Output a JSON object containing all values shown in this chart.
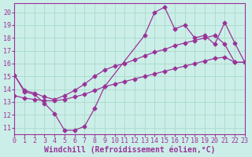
{
  "bg_color": "#cceee8",
  "grid_color": "#aaddcc",
  "line_color": "#993399",
  "xlim": [
    0,
    23
  ],
  "ylim": [
    10.5,
    20.7
  ],
  "xticks": [
    0,
    1,
    2,
    3,
    4,
    5,
    6,
    7,
    8,
    9,
    10,
    11,
    12,
    13,
    14,
    15,
    16,
    17,
    18,
    19,
    20,
    21,
    22,
    23
  ],
  "yticks": [
    11,
    12,
    13,
    14,
    15,
    16,
    17,
    18,
    19,
    20
  ],
  "xlabel": "Windchill (Refroidissement éolien,°C)",
  "line1_x": [
    0,
    1,
    2,
    3,
    4,
    5,
    6,
    7,
    8,
    9,
    13,
    14,
    15,
    16,
    17,
    18,
    19,
    20,
    21,
    22,
    23
  ],
  "line1_y": [
    15.1,
    13.8,
    13.6,
    12.9,
    12.1,
    10.8,
    10.8,
    11.1,
    12.5,
    14.2,
    18.2,
    20.0,
    20.4,
    18.7,
    19.0,
    18.0,
    18.2,
    17.5,
    19.2,
    17.6,
    16.1
  ],
  "line2_x": [
    0,
    1,
    2,
    3,
    4,
    5,
    6,
    7,
    8,
    9,
    10,
    11,
    12,
    13,
    14,
    15,
    16,
    17,
    18,
    19,
    20,
    21,
    22,
    23
  ],
  "line2_y": [
    15.1,
    13.9,
    13.7,
    13.4,
    13.2,
    13.5,
    13.9,
    14.4,
    15.0,
    15.5,
    15.8,
    16.0,
    16.3,
    16.6,
    16.9,
    17.1,
    17.4,
    17.6,
    17.8,
    18.0,
    18.2,
    17.5,
    16.1,
    16.1
  ],
  "line3_x": [
    0,
    1,
    2,
    3,
    4,
    5,
    6,
    7,
    8,
    9,
    10,
    11,
    12,
    13,
    14,
    15,
    16,
    17,
    18,
    19,
    20,
    21,
    22,
    23
  ],
  "line3_y": [
    13.5,
    13.3,
    13.2,
    13.1,
    13.1,
    13.2,
    13.4,
    13.6,
    13.9,
    14.2,
    14.4,
    14.6,
    14.8,
    15.0,
    15.2,
    15.4,
    15.6,
    15.8,
    16.0,
    16.2,
    16.4,
    16.5,
    16.1,
    16.1
  ],
  "marker": "D",
  "markersize": 2.5,
  "lw": 0.9,
  "xlabel_fontsize": 7,
  "tick_fontsize": 6
}
